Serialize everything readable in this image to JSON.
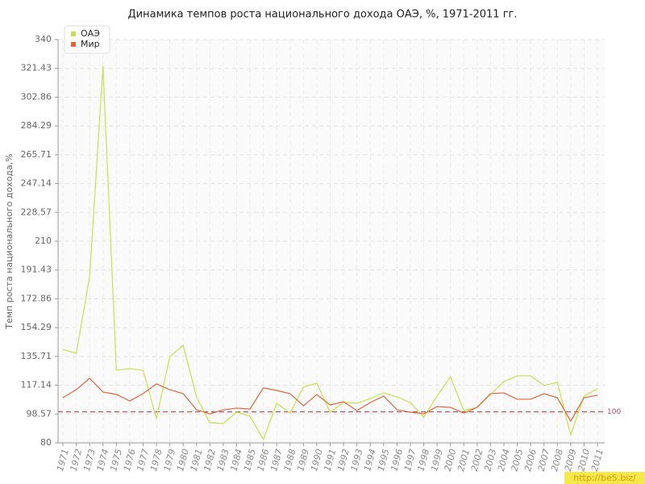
{
  "chart_data": {
    "type": "line",
    "title": "Динамика темпов роста национального дохода ОАЭ, %, 1971-2011 гг.",
    "y_label": "Темп роста национального дохода,%",
    "categories": [
      "1971",
      "1972",
      "1973",
      "1974",
      "1975",
      "1976",
      "1977",
      "1978",
      "1979",
      "1980",
      "1981",
      "1982",
      "1983",
      "1984",
      "1985",
      "1986",
      "1987",
      "1988",
      "1989",
      "1990",
      "1991",
      "1992",
      "1993",
      "1994",
      "1995",
      "1996",
      "1997",
      "1998",
      "1999",
      "2000",
      "2001",
      "2002",
      "2003",
      "2004",
      "2005",
      "2006",
      "2007",
      "2008",
      "2009",
      "2010",
      "2011"
    ],
    "series": [
      {
        "name": "ОАЭ",
        "color": "#c8e04c",
        "values": [
          140.3,
          137.7,
          187.1,
          322.8,
          126.8,
          127.8,
          126.8,
          95.6,
          135.6,
          142.9,
          109.6,
          93,
          92.5,
          99.8,
          97.2,
          82.1,
          105.5,
          99.2,
          115.9,
          118.5,
          99.8,
          106,
          105.5,
          108.6,
          112.2,
          109.6,
          106,
          96.6,
          110.2,
          122.6,
          100.8,
          102.9,
          111.2,
          119.5,
          123.2,
          123.2,
          116.9,
          119,
          85.2,
          110.2,
          114.8
        ]
      },
      {
        "name": "Мир",
        "color": "#e0643c",
        "values": [
          109.1,
          114.3,
          121.6,
          112.8,
          111.2,
          107,
          111.7,
          118,
          114.3,
          111.7,
          101.3,
          98.7,
          101.3,
          102.4,
          101.8,
          115.4,
          113.8,
          111.7,
          103.9,
          111.2,
          104.4,
          106.5,
          100.8,
          106,
          110.2,
          101.3,
          99.8,
          98.7,
          103.4,
          102.9,
          99.2,
          102.9,
          111.7,
          112.2,
          108.1,
          108.1,
          111.7,
          109.1,
          94,
          109.1,
          110.7
        ]
      }
    ],
    "ylim": [
      80,
      340
    ],
    "yticks": [
      80,
      98.57,
      117.14,
      135.71,
      154.29,
      172.86,
      191.43,
      210,
      228.57,
      247.14,
      265.71,
      284.29,
      302.86,
      321.43,
      340
    ],
    "grid": true,
    "legend": "top-left",
    "reference_line": {
      "value": 100,
      "label": "100",
      "color": "#b84a5c"
    },
    "watermark": "http://be5.biz/"
  }
}
